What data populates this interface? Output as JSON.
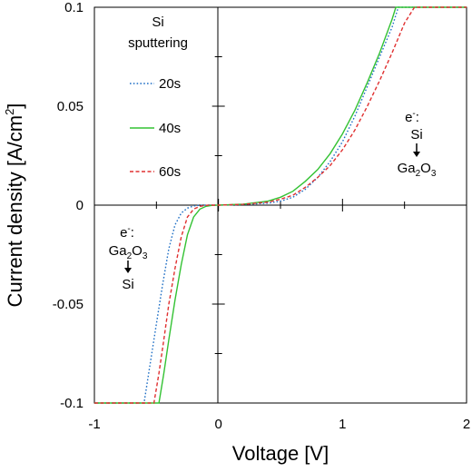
{
  "chart_data": {
    "type": "line",
    "xlabel": "Voltage [V]",
    "ylabel": "Current density [A/cm",
    "ylabel_sup": "2",
    "ylabel_end": "]",
    "xlim": [
      -1,
      2
    ],
    "ylim": [
      -0.1,
      0.1
    ],
    "x_ticks": [
      {
        "v": -1,
        "label": "-1"
      },
      {
        "v": 0,
        "label": "0"
      },
      {
        "v": 1,
        "label": "1"
      },
      {
        "v": 2,
        "label": "2"
      }
    ],
    "y_ticks": [
      {
        "v": -0.1,
        "label": "-0.1"
      },
      {
        "v": -0.05,
        "label": "-0.05"
      },
      {
        "v": 0,
        "label": "0"
      },
      {
        "v": 0.05,
        "label": "0.05"
      },
      {
        "v": 0.1,
        "label": "0.1"
      }
    ],
    "legend_title": [
      "Si",
      "sputtering"
    ],
    "legend_placement": "top-left",
    "series": [
      {
        "name": "20s",
        "color": "#1f6fc5",
        "dash": "dotted",
        "x": [
          -1,
          -0.6,
          -0.55,
          -0.5,
          -0.45,
          -0.4,
          -0.35,
          -0.3,
          -0.25,
          -0.2,
          -0.15,
          -0.1,
          -0.05,
          0,
          0.2,
          0.4,
          0.5,
          0.6,
          0.7,
          0.8,
          0.9,
          1.0,
          1.1,
          1.2,
          1.3,
          1.4,
          1.45,
          2
        ],
        "y": [
          -0.1,
          -0.1,
          -0.08,
          -0.06,
          -0.04,
          -0.022,
          -0.01,
          -0.004,
          -0.0015,
          -0.0004,
          -0.0001,
          0,
          0,
          0,
          0.0003,
          0.001,
          0.002,
          0.004,
          0.008,
          0.014,
          0.022,
          0.032,
          0.045,
          0.06,
          0.075,
          0.09,
          0.1,
          0.1
        ]
      },
      {
        "name": "40s",
        "color": "#33c233",
        "dash": "solid",
        "x": [
          -1,
          -0.48,
          -0.44,
          -0.4,
          -0.35,
          -0.3,
          -0.25,
          -0.2,
          -0.15,
          -0.1,
          -0.05,
          0,
          0.2,
          0.4,
          0.5,
          0.6,
          0.7,
          0.8,
          0.9,
          1.0,
          1.1,
          1.2,
          1.3,
          1.4,
          1.43,
          2
        ],
        "y": [
          -0.1,
          -0.1,
          -0.085,
          -0.068,
          -0.048,
          -0.03,
          -0.015,
          -0.006,
          -0.002,
          -0.0006,
          -0.0001,
          0,
          0.0005,
          0.002,
          0.004,
          0.007,
          0.012,
          0.018,
          0.026,
          0.036,
          0.048,
          0.062,
          0.077,
          0.094,
          0.1,
          0.1
        ]
      },
      {
        "name": "60s",
        "color": "#e03030",
        "dash": "dashed",
        "x": [
          -1,
          -0.52,
          -0.48,
          -0.44,
          -0.4,
          -0.35,
          -0.3,
          -0.25,
          -0.2,
          -0.15,
          -0.1,
          -0.05,
          0,
          0.2,
          0.4,
          0.5,
          0.6,
          0.7,
          0.8,
          0.9,
          1.0,
          1.1,
          1.2,
          1.3,
          1.4,
          1.5,
          1.58,
          2
        ],
        "y": [
          -0.1,
          -0.1,
          -0.085,
          -0.068,
          -0.05,
          -0.032,
          -0.016,
          -0.006,
          -0.002,
          -0.0006,
          -0.0001,
          0,
          0,
          0.0004,
          0.0015,
          0.003,
          0.005,
          0.009,
          0.014,
          0.02,
          0.028,
          0.038,
          0.05,
          0.063,
          0.077,
          0.092,
          0.1,
          0.1
        ]
      }
    ],
    "annotations": {
      "forward": {
        "line1": "e",
        "line1_sup": "-",
        "line1_end": ":",
        "line2": "Si",
        "line3": "Ga",
        "line3_sub1": "2",
        "line3_mid": "O",
        "line3_sub2": "3"
      },
      "reverse": {
        "line1": "e",
        "line1_sup": "-",
        "line1_end": ":",
        "line2": "Ga",
        "line2_sub1": "2",
        "line2_mid": "O",
        "line2_sub2": "3",
        "line3": "Si"
      }
    }
  }
}
